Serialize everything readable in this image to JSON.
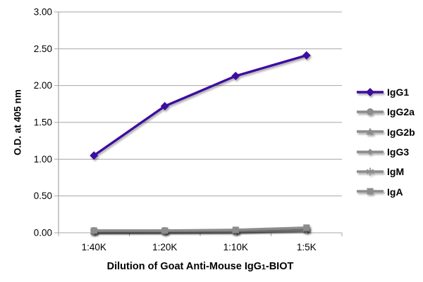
{
  "colors": {
    "purple": "#3d0b9e",
    "gray": "#8c8c8c",
    "grid": "#a6a6a6",
    "text": "#000000",
    "background": "#ffffff"
  },
  "chart_data": {
    "type": "line",
    "title": "",
    "xlabel": "Dilution of Goat Anti-Mouse IgG1-BIOT",
    "xlabel_parts": {
      "prefix": "Dilution of Goat Anti-Mouse IgG",
      "sub": "1",
      "suffix": "-BIOT"
    },
    "ylabel": "O.D. at 405 nm",
    "categories": [
      "1:40K",
      "1:20K",
      "1:10K",
      "1:5K"
    ],
    "ylim": [
      0,
      3.0
    ],
    "ytick_step": 0.5,
    "ytick_labels": [
      "0.00",
      "0.50",
      "1.00",
      "1.50",
      "2.00",
      "2.50",
      "3.00"
    ],
    "grid": true,
    "legend_position": "right",
    "series": [
      {
        "name": "IgG1",
        "marker": "diamond",
        "color": "#3d0b9e",
        "values": [
          1.05,
          1.72,
          2.13,
          2.41
        ]
      },
      {
        "name": "IgG2a",
        "marker": "circle",
        "color": "#8c8c8c",
        "values": [
          0.03,
          0.03,
          0.03,
          0.06
        ]
      },
      {
        "name": "IgG2b",
        "marker": "triangle",
        "color": "#8c8c8c",
        "values": [
          0.02,
          0.03,
          0.03,
          0.05
        ]
      },
      {
        "name": "IgG3",
        "marker": "diamond-small",
        "color": "#8c8c8c",
        "values": [
          0.02,
          0.02,
          0.03,
          0.05
        ]
      },
      {
        "name": "IgM",
        "marker": "asterisk",
        "color": "#8c8c8c",
        "values": [
          0.02,
          0.02,
          0.02,
          0.04
        ]
      },
      {
        "name": "IgA",
        "marker": "square",
        "color": "#8c8c8c",
        "values": [
          0.03,
          0.03,
          0.04,
          0.07
        ]
      }
    ]
  }
}
